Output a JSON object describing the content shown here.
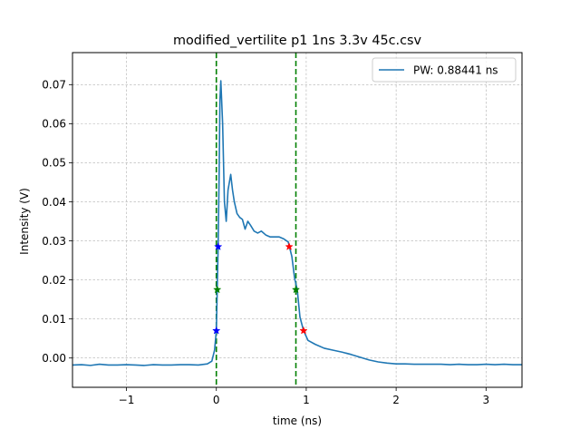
{
  "chart_data": {
    "type": "line",
    "title": "modified_vertilite p1 1ns 3.3v 45c.csv",
    "xlabel": "time (ns)",
    "ylabel": "Intensity (V)",
    "xlim": [
      -1.6,
      3.4
    ],
    "ylim": [
      -0.0075,
      0.0782
    ],
    "x_ticks": [
      -1,
      0,
      1,
      2,
      3
    ],
    "x_tick_labels": [
      "−1",
      "0",
      "1",
      "2",
      "3"
    ],
    "y_ticks": [
      0.0,
      0.01,
      0.02,
      0.03,
      0.04,
      0.05,
      0.06,
      0.07
    ],
    "y_tick_labels": [
      "0.00",
      "0.01",
      "0.02",
      "0.03",
      "0.04",
      "0.05",
      "0.06",
      "0.07"
    ],
    "grid": true,
    "legend": {
      "position": "top-right"
    },
    "colors": {
      "series": "#1f77b4",
      "vlines": "#008000",
      "markers_rise": "#0000ff",
      "markers_fall": "#ff0000",
      "markers_mid": "#008000",
      "grid": "#b0b0b0"
    },
    "series": [
      {
        "name": "PW: 0.88441 ns",
        "x": [
          -1.6,
          -1.5,
          -1.4,
          -1.3,
          -1.2,
          -1.1,
          -1.0,
          -0.9,
          -0.8,
          -0.7,
          -0.6,
          -0.5,
          -0.4,
          -0.3,
          -0.2,
          -0.1,
          -0.05,
          -0.02,
          0.0,
          0.01,
          0.02,
          0.03,
          0.04,
          0.05,
          0.07,
          0.09,
          0.11,
          0.13,
          0.16,
          0.18,
          0.2,
          0.23,
          0.26,
          0.29,
          0.32,
          0.35,
          0.38,
          0.42,
          0.46,
          0.5,
          0.55,
          0.6,
          0.65,
          0.7,
          0.75,
          0.8,
          0.84,
          0.87,
          0.9,
          0.93,
          0.97,
          1.02,
          1.1,
          1.2,
          1.3,
          1.4,
          1.5,
          1.6,
          1.7,
          1.8,
          1.9,
          2.0,
          2.1,
          2.2,
          2.3,
          2.4,
          2.5,
          2.6,
          2.7,
          2.8,
          2.9,
          3.0,
          3.1,
          3.2,
          3.3,
          3.4
        ],
        "y": [
          -0.0018,
          -0.0017,
          -0.0019,
          -0.0016,
          -0.0018,
          -0.0018,
          -0.0017,
          -0.0018,
          -0.0019,
          -0.0017,
          -0.0018,
          -0.0018,
          -0.0017,
          -0.0017,
          -0.0018,
          -0.0015,
          -0.0008,
          0.002,
          0.007,
          0.0175,
          0.0285,
          0.045,
          0.066,
          0.071,
          0.06,
          0.04,
          0.035,
          0.043,
          0.047,
          0.043,
          0.04,
          0.037,
          0.036,
          0.0355,
          0.033,
          0.035,
          0.034,
          0.0325,
          0.032,
          0.0325,
          0.0315,
          0.031,
          0.031,
          0.031,
          0.0305,
          0.0297,
          0.026,
          0.0205,
          0.0175,
          0.0105,
          0.007,
          0.0045,
          0.0035,
          0.0025,
          0.002,
          0.0015,
          0.0009,
          0.0002,
          -0.0005,
          -0.001,
          -0.0013,
          -0.0015,
          -0.0015,
          -0.0016,
          -0.0016,
          -0.0016,
          -0.0016,
          -0.0017,
          -0.0016,
          -0.0017,
          -0.0017,
          -0.0016,
          -0.0017,
          -0.0016,
          -0.0017,
          -0.0017
        ]
      }
    ],
    "vlines": [
      0.0,
      0.885
    ],
    "markers": [
      {
        "x": 0.0,
        "y": 0.007,
        "color": "#0000ff"
      },
      {
        "x": 0.01,
        "y": 0.0175,
        "color": "#008000"
      },
      {
        "x": 0.02,
        "y": 0.0285,
        "color": "#0000ff"
      },
      {
        "x": 0.81,
        "y": 0.0285,
        "color": "#ff0000"
      },
      {
        "x": 0.885,
        "y": 0.0175,
        "color": "#008000"
      },
      {
        "x": 0.97,
        "y": 0.007,
        "color": "#ff0000"
      }
    ]
  }
}
